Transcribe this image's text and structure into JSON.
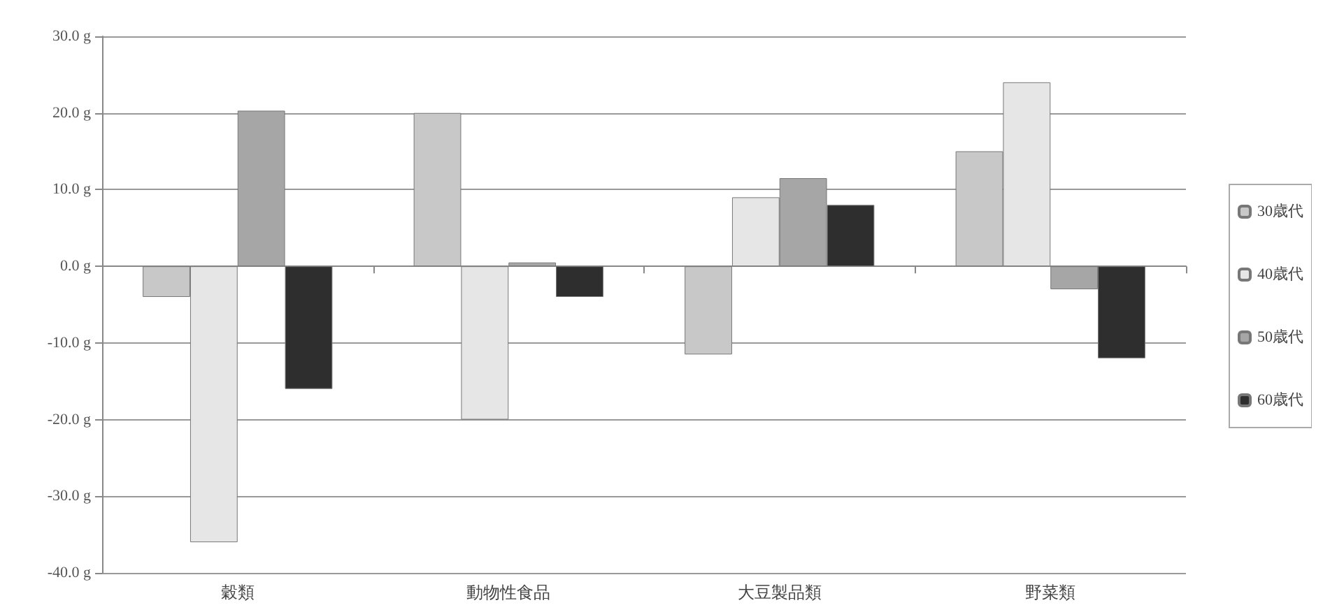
{
  "chart_data": {
    "type": "bar",
    "categories": [
      "穀類",
      "動物性食品",
      "大豆製品類",
      "野菜類"
    ],
    "series": [
      {
        "name": "30歳代",
        "color": "#c8c8c8",
        "values": [
          -4,
          20,
          -11.5,
          15
        ]
      },
      {
        "name": "40歳代",
        "color": "#e6e6e6",
        "values": [
          -36,
          -20,
          9,
          24
        ]
      },
      {
        "name": "50歳代",
        "color": "#a6a6a6",
        "values": [
          20.3,
          0.5,
          11.5,
          -3
        ]
      },
      {
        "name": "60歳代",
        "color": "#2e2e2e",
        "values": [
          -16,
          -4,
          8,
          -12
        ]
      }
    ],
    "ylim": [
      -40,
      30
    ],
    "yticks": [
      {
        "value": -40,
        "label": "-40.0 g"
      },
      {
        "value": -30,
        "label": "-30.0 g"
      },
      {
        "value": -20,
        "label": "-20.0 g"
      },
      {
        "value": -10,
        "label": "-10.0 g"
      },
      {
        "value": 0,
        "label": "0.0 g"
      },
      {
        "value": 10,
        "label": "10.0 g"
      },
      {
        "value": 20,
        "label": "20.0 g"
      },
      {
        "value": 30,
        "label": "30.0 g"
      }
    ],
    "grid": "y",
    "legend": "right"
  }
}
